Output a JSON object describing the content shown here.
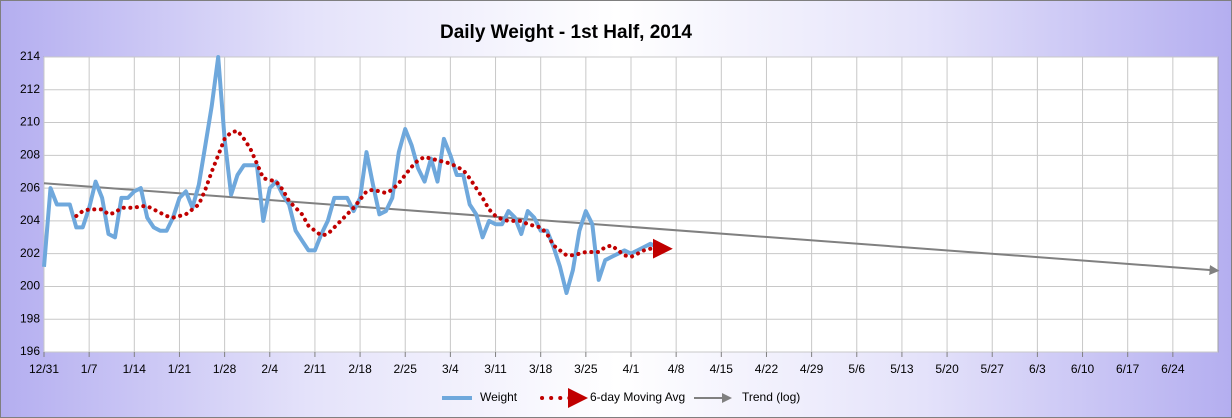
{
  "chart_data": {
    "type": "line",
    "title": "Daily Weight - 1st Half, 2014",
    "x": [
      0,
      1,
      2,
      3,
      4,
      5,
      6,
      7,
      8,
      9,
      10,
      11,
      12,
      13,
      14,
      15,
      16,
      17,
      18,
      19,
      20,
      21,
      22,
      23,
      24,
      25,
      26,
      27,
      28,
      29,
      30,
      31,
      32,
      33,
      34,
      35,
      36,
      37,
      38,
      39,
      40,
      41,
      42,
      43,
      44,
      45,
      46,
      47,
      48,
      49,
      50,
      51,
      52,
      53,
      54,
      55,
      56,
      57,
      58,
      59,
      60,
      61,
      62,
      63,
      64,
      65,
      66,
      67,
      68,
      69,
      70,
      71,
      72,
      73,
      74,
      75,
      76,
      77,
      78,
      79,
      80,
      81,
      82,
      83,
      84,
      85,
      86,
      87,
      88,
      89,
      90,
      91,
      92,
      93,
      94,
      95
    ],
    "series": [
      {
        "name": "Weight",
        "color": "#6fa8dc",
        "style": "solid",
        "values": [
          201.2,
          206.0,
          205.0,
          205.0,
          205.0,
          203.6,
          203.6,
          204.8,
          206.4,
          205.4,
          203.2,
          203.0,
          205.4,
          205.4,
          205.8,
          206.0,
          204.2,
          203.6,
          203.4,
          203.4,
          204.2,
          205.4,
          205.8,
          204.8,
          206.2,
          208.6,
          211.0,
          214.0,
          209.0,
          205.6,
          206.8,
          207.4,
          207.4,
          207.4,
          204.0,
          206.0,
          206.4,
          205.6,
          205.0,
          203.4,
          202.8,
          202.2,
          202.2,
          203.2,
          204.0,
          205.4,
          205.4,
          205.4,
          204.6,
          205.4,
          208.2,
          206.2,
          204.4,
          204.6,
          205.4,
          208.2,
          209.6,
          208.6,
          207.2,
          206.4,
          207.8,
          206.4,
          209.0,
          208.0,
          206.8,
          206.8,
          205.0,
          204.4,
          203.0,
          204.0,
          203.8,
          203.8,
          204.6,
          204.2,
          203.2,
          204.6,
          204.2,
          203.4,
          203.4,
          202.4,
          201.2,
          199.6,
          201.0,
          203.4,
          204.6,
          203.8,
          200.4,
          201.6,
          201.8,
          202.0,
          202.2,
          202.0,
          202.2,
          202.4,
          202.6,
          202.4
        ]
      },
      {
        "name": "6-day Moving Avg",
        "color": "#c00000",
        "style": "dotted",
        "values": [
          null,
          null,
          null,
          null,
          null,
          204.3,
          204.6,
          204.7,
          204.7,
          204.7,
          204.4,
          204.5,
          204.8,
          204.8,
          204.8,
          204.9,
          204.9,
          204.7,
          204.5,
          204.3,
          204.2,
          204.3,
          204.4,
          204.7,
          205.0,
          205.9,
          207.0,
          208.0,
          209.0,
          209.4,
          209.5,
          209.0,
          208.4,
          207.5,
          206.6,
          206.5,
          206.4,
          205.9,
          205.2,
          204.8,
          204.4,
          203.7,
          203.4,
          203.1,
          203.2,
          203.6,
          204.0,
          204.4,
          204.8,
          205.3,
          205.8,
          205.9,
          205.8,
          205.7,
          205.9,
          206.3,
          206.8,
          207.3,
          207.7,
          207.9,
          207.8,
          207.7,
          207.6,
          207.5,
          207.3,
          207.1,
          206.6,
          206.0,
          205.4,
          204.7,
          204.3,
          204.1,
          204.0,
          204.0,
          204.0,
          203.8,
          203.7,
          203.6,
          203.2,
          202.5,
          202.2,
          201.9,
          201.9,
          202.0,
          202.1,
          202.1,
          202.1,
          202.4,
          202.5,
          202.2,
          201.9,
          201.8,
          202.0,
          202.2,
          202.3,
          202.3
        ]
      },
      {
        "name": "Trend (log)",
        "color": "#808080",
        "style": "arrow",
        "x": [
          0,
          181
        ],
        "values": [
          206.3,
          201.0
        ]
      }
    ],
    "xlim": [
      0,
      182
    ],
    "xticks": [
      {
        "value": 0,
        "label": "12/31"
      },
      {
        "value": 7,
        "label": "1/7"
      },
      {
        "value": 14,
        "label": "1/14"
      },
      {
        "value": 21,
        "label": "1/21"
      },
      {
        "value": 28,
        "label": "1/28"
      },
      {
        "value": 35,
        "label": "2/4"
      },
      {
        "value": 42,
        "label": "2/11"
      },
      {
        "value": 49,
        "label": "2/18"
      },
      {
        "value": 56,
        "label": "2/25"
      },
      {
        "value": 63,
        "label": "3/4"
      },
      {
        "value": 70,
        "label": "3/11"
      },
      {
        "value": 77,
        "label": "3/18"
      },
      {
        "value": 84,
        "label": "3/25"
      },
      {
        "value": 91,
        "label": "4/1"
      },
      {
        "value": 98,
        "label": "4/8"
      },
      {
        "value": 105,
        "label": "4/15"
      },
      {
        "value": 112,
        "label": "4/22"
      },
      {
        "value": 119,
        "label": "4/29"
      },
      {
        "value": 126,
        "label": "5/6"
      },
      {
        "value": 133,
        "label": "5/13"
      },
      {
        "value": 140,
        "label": "5/20"
      },
      {
        "value": 147,
        "label": "5/27"
      },
      {
        "value": 154,
        "label": "6/3"
      },
      {
        "value": 161,
        "label": "6/10"
      },
      {
        "value": 168,
        "label": "6/17"
      },
      {
        "value": 175,
        "label": "6/24"
      }
    ],
    "ylim": [
      196,
      214
    ],
    "yticks": [
      196,
      198,
      200,
      202,
      204,
      206,
      208,
      210,
      212,
      214
    ],
    "grid": true,
    "legend": "bottom"
  }
}
